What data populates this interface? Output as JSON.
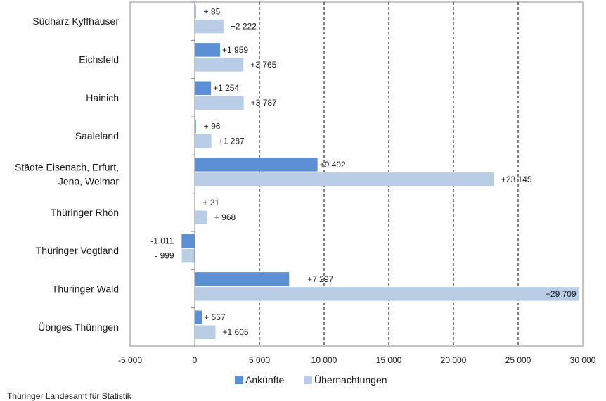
{
  "chart_data": {
    "type": "bar",
    "orientation": "horizontal",
    "title": "",
    "xlabel": "",
    "ylabel": "",
    "categories": [
      [
        "Südharz Kyffhäuser"
      ],
      [
        "Eichsfeld"
      ],
      [
        "Hainich"
      ],
      [
        "Saaleland"
      ],
      [
        "Städte Eisenach, Erfurt,",
        "Jena, Weimar"
      ],
      [
        "Thüringer Rhön"
      ],
      [
        "Thüringer Vogtland"
      ],
      [
        "Thüringer Wald"
      ],
      [
        "Übriges Thüringen"
      ]
    ],
    "series": [
      {
        "name": "Ankünfte",
        "color": "#5b8fd6",
        "values": [
          85,
          1959,
          1254,
          96,
          9492,
          21,
          -1011,
          7297,
          557
        ],
        "labels": [
          "+ 85",
          "+1 959",
          "+1 254",
          "+ 96",
          "+9 492",
          "+ 21",
          "-1 011",
          "+7 297",
          "+ 557"
        ]
      },
      {
        "name": "Übernachtungen",
        "color": "#b9cde6",
        "values": [
          2222,
          3765,
          3787,
          1287,
          23145,
          968,
          -999,
          29709,
          1605
        ],
        "labels": [
          "+2 222",
          "+3 765",
          "+3 787",
          "+1 287",
          "+23 145",
          "+ 968",
          "- 999",
          "+29 709",
          "+1 605"
        ]
      }
    ],
    "xlim": [
      -5000,
      30000
    ],
    "xticks": [
      -5000,
      0,
      5000,
      10000,
      15000,
      20000,
      25000,
      30000
    ],
    "xtick_labels": [
      "-5 000",
      "0",
      "5 000",
      "10 000",
      "15 000",
      "20 000",
      "25 000",
      "30 000"
    ],
    "grid": "vertical dashed",
    "legend_position": "bottom"
  },
  "source": "Thüringer Landesamt für Statistik"
}
